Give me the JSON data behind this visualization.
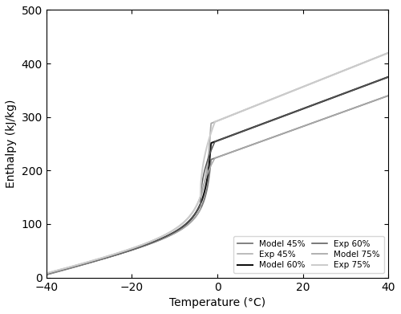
{
  "title": "",
  "xlabel": "Temperature (°C)",
  "ylabel": "Enthalpy (kJ/kg)",
  "xlim": [
    -40,
    40
  ],
  "ylim": [
    0,
    500
  ],
  "xticks": [
    -40,
    -20,
    0,
    20,
    40
  ],
  "yticks": [
    0,
    100,
    200,
    300,
    400,
    500
  ],
  "figsize": [
    5.0,
    3.91
  ],
  "dpi": 100,
  "series": {
    "model_45": {
      "color": "#777777",
      "lw": 1.3,
      "label": "Model 45%"
    },
    "model_60": {
      "color": "#111111",
      "lw": 1.5,
      "label": "Model 60%"
    },
    "model_75": {
      "color": "#aaaaaa",
      "lw": 1.3,
      "label": "Model 75%"
    },
    "exp_45": {
      "color": "#aaaaaa",
      "lw": 1.1,
      "label": "Exp 45%"
    },
    "exp_60": {
      "color": "#555555",
      "lw": 1.1,
      "label": "Exp 60%"
    },
    "exp_75": {
      "color": "#cccccc",
      "lw": 1.5,
      "label": "Exp 75%"
    }
  },
  "legend": {
    "order": [
      "model_45",
      "exp_45",
      "model_60",
      "exp_60",
      "model_75",
      "exp_75"
    ],
    "ncol": 2,
    "loc": "lower right",
    "fontsize": 7.5,
    "handlelength": 1.8,
    "columnspacing": 0.8,
    "labelspacing": 0.3,
    "borderpad": 0.5
  }
}
